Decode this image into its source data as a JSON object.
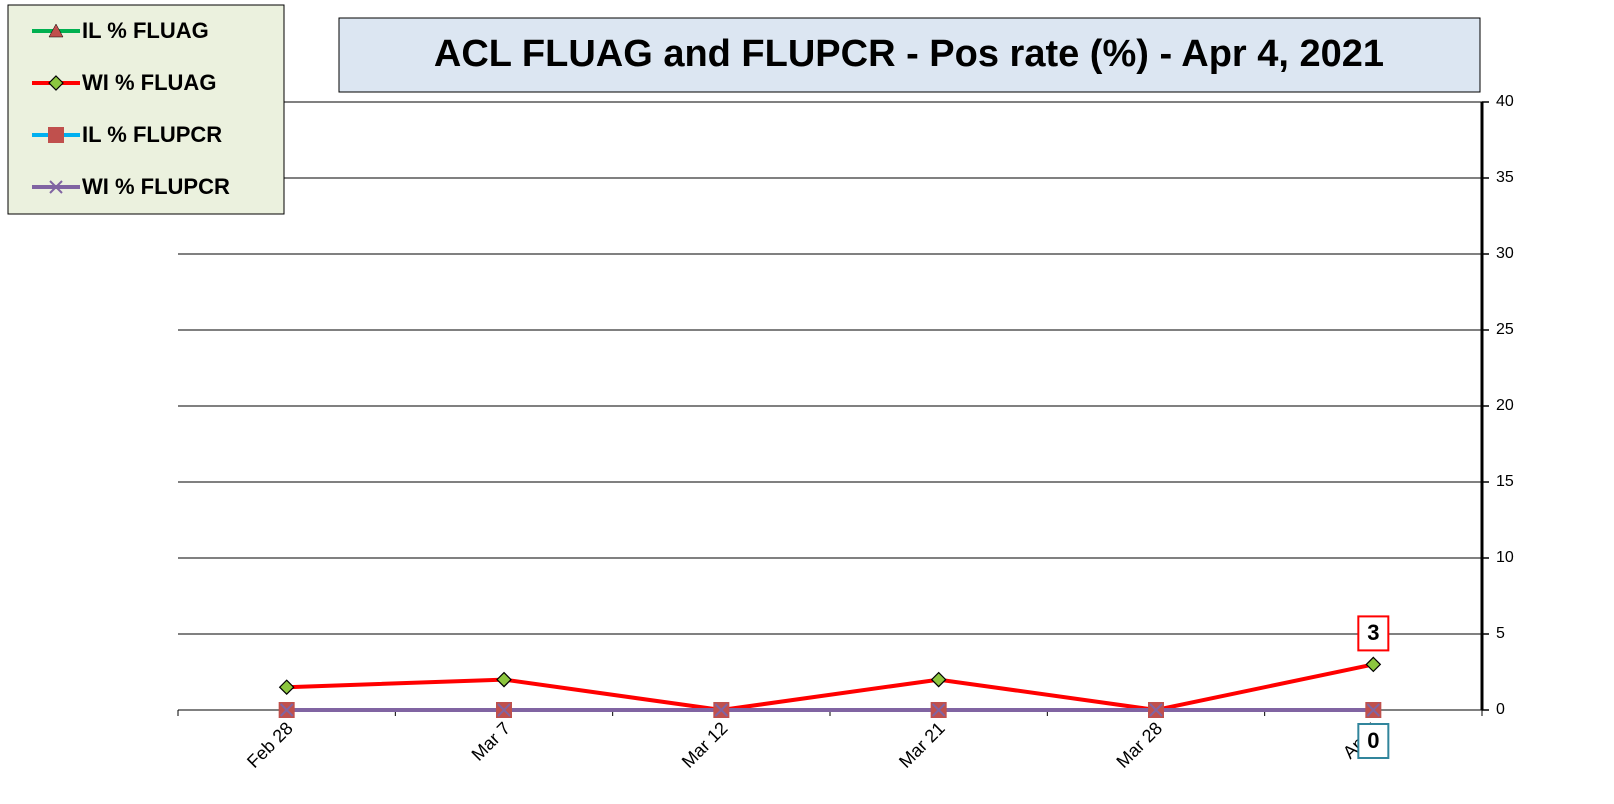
{
  "chart_data": {
    "type": "line",
    "title": "ACL FLUAG and FLUPCR -  Pos rate (%) - Apr 4, 2021",
    "categories": [
      "Feb 28",
      "Mar 7",
      "Mar 12",
      "Mar 21",
      "Mar 28",
      "Apr 4"
    ],
    "series": [
      {
        "name": "IL % FLUAG",
        "color": "#00b050",
        "marker": "triangle",
        "marker_color": "#c0504d",
        "values": [
          0,
          0,
          0,
          0,
          0,
          0
        ]
      },
      {
        "name": "WI % FLUAG",
        "color": "#ff0000",
        "marker": "diamond",
        "marker_color": "#8cc63f",
        "values": [
          1.5,
          2,
          0,
          2,
          0,
          3
        ]
      },
      {
        "name": "IL % FLUPCR",
        "color": "#00b0f0",
        "marker": "square",
        "marker_color": "#c0504d",
        "values": [
          0,
          0,
          0,
          0,
          0,
          0
        ]
      },
      {
        "name": "WI % FLUPCR",
        "color": "#8064a2",
        "marker": "x",
        "marker_color": "#8064a2",
        "values": [
          0,
          0,
          0,
          0,
          0,
          0
        ]
      }
    ],
    "ylim": [
      0,
      40
    ],
    "yticks": [
      0,
      5,
      10,
      15,
      20,
      25,
      30,
      35,
      40
    ],
    "grid": true,
    "y_axis_side": "right",
    "legend": "top-left"
  }
}
